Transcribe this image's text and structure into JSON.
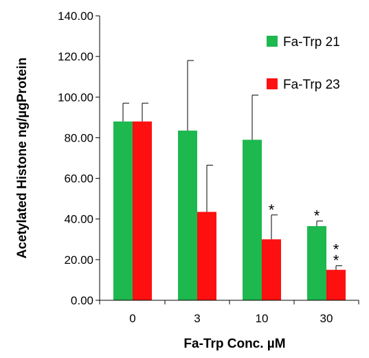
{
  "chart_data": {
    "type": "bar",
    "categories": [
      "0",
      "3",
      "10",
      "30"
    ],
    "xlabel": "Fa-Trp Conc. µM",
    "ylabel": "Acetylated Histone ng/µgProtein",
    "ylim": [
      0,
      140
    ],
    "yticks": [
      "0.00",
      "20.00",
      "40.00",
      "60.00",
      "80.00",
      "100.00",
      "120.00",
      "140.00"
    ],
    "legend_position": "top-right",
    "grid": false,
    "series": [
      {
        "name": "Fa-Trp 21",
        "color": "#1db84e",
        "values": [
          88,
          83.5,
          79,
          36.5
        ],
        "error": [
          9,
          34.5,
          22,
          2.5
        ],
        "significance": [
          "",
          "",
          "",
          "*"
        ]
      },
      {
        "name": "Fa-Trp 23",
        "color": "#ff1010",
        "values": [
          88,
          43.5,
          30,
          15
        ],
        "error": [
          9,
          23,
          12,
          2
        ],
        "significance": [
          "",
          "",
          "*",
          "**"
        ]
      }
    ]
  }
}
